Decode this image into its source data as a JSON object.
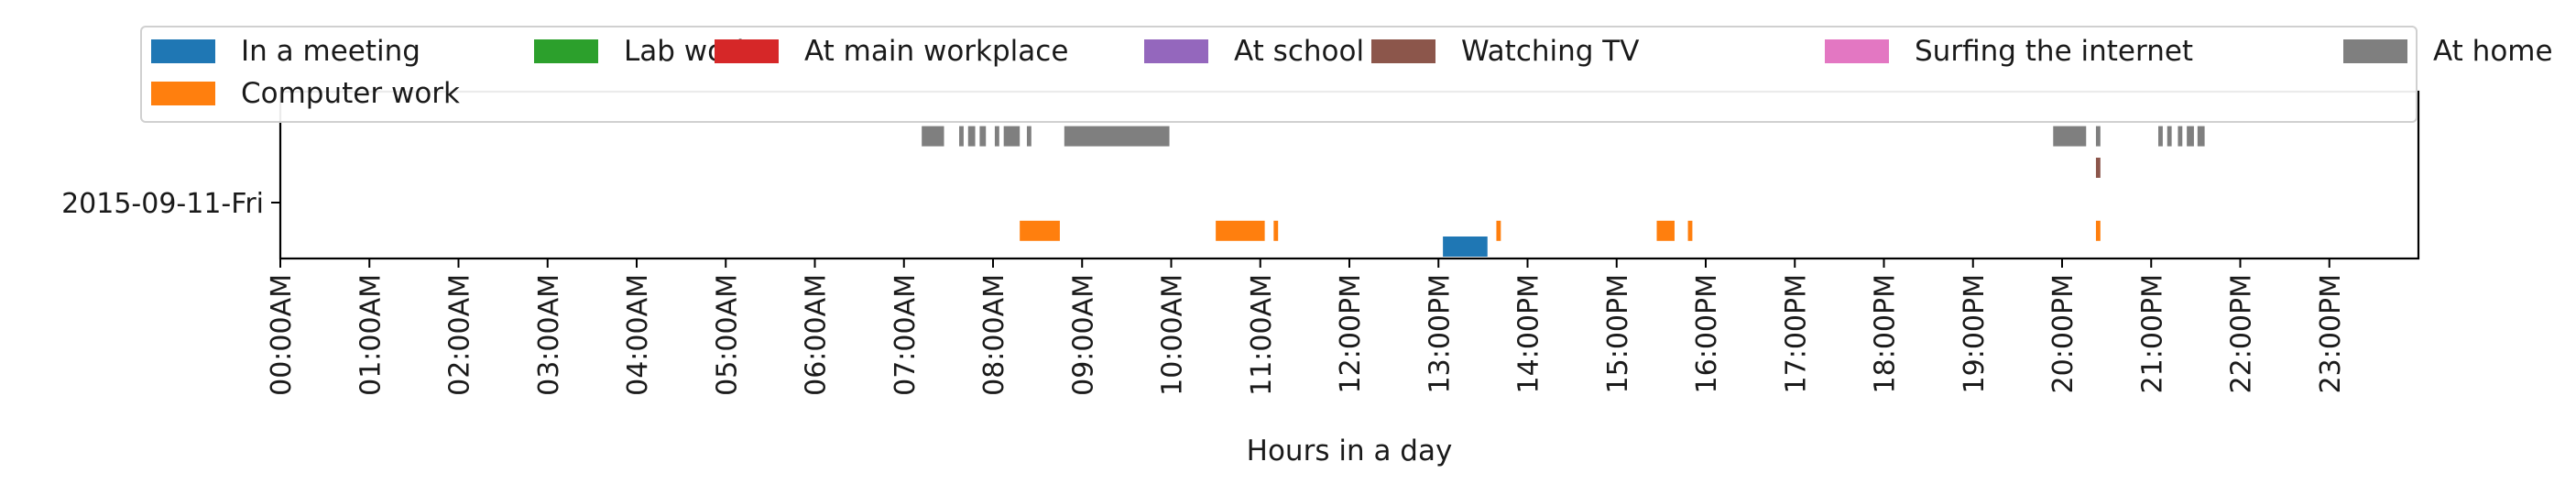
{
  "chart_data": {
    "type": "bar",
    "x": {
      "label": "Hours in a day",
      "ticks": [
        "00:00AM",
        "01:00AM",
        "02:00AM",
        "03:00AM",
        "04:00AM",
        "05:00AM",
        "06:00AM",
        "07:00AM",
        "08:00AM",
        "09:00AM",
        "10:00AM",
        "11:00AM",
        "12:00PM",
        "13:00PM",
        "14:00PM",
        "15:00PM",
        "16:00PM",
        "17:00PM",
        "18:00PM",
        "19:00PM",
        "20:00PM",
        "21:00PM",
        "22:00PM",
        "23:00PM"
      ],
      "range": [
        0,
        24
      ]
    },
    "y": {
      "categories": [
        "2015-09-11-Fri"
      ]
    },
    "legend": {
      "placement": "top"
    },
    "series": [
      {
        "name": "In a meeting",
        "color": "#1f77b4",
        "lane": 0,
        "intervals": [
          [
            13.05,
            13.55
          ]
        ]
      },
      {
        "name": "Computer work",
        "color": "#ff7f0e",
        "lane": 1,
        "intervals": [
          [
            8.3,
            8.75
          ],
          [
            10.5,
            11.05
          ],
          [
            11.15,
            11.2
          ],
          [
            13.65,
            13.7
          ],
          [
            15.45,
            15.65
          ],
          [
            15.8,
            15.85
          ],
          [
            20.38,
            20.43
          ]
        ]
      },
      {
        "name": "Lab work",
        "color": "#2ca02c",
        "lane": 2,
        "intervals": []
      },
      {
        "name": "At main workplace",
        "color": "#d62728",
        "lane": 3,
        "intervals": []
      },
      {
        "name": "At school",
        "color": "#9467bd",
        "lane": 4,
        "intervals": []
      },
      {
        "name": "Watching TV",
        "color": "#8c564b",
        "lane": 5,
        "intervals": [
          [
            20.38,
            20.43
          ]
        ]
      },
      {
        "name": "Surfing the internet",
        "color": "#e377c2",
        "lane": 6,
        "intervals": []
      },
      {
        "name": "At home",
        "color": "#7f7f7f",
        "lane": 7,
        "intervals": [
          [
            7.2,
            7.45
          ],
          [
            7.62,
            7.67
          ],
          [
            7.72,
            7.8
          ],
          [
            7.85,
            7.92
          ],
          [
            8.02,
            8.07
          ],
          [
            8.12,
            8.3
          ],
          [
            8.38,
            8.43
          ],
          [
            8.8,
            9.98
          ],
          [
            19.9,
            20.27
          ],
          [
            20.38,
            20.43
          ],
          [
            21.08,
            21.13
          ],
          [
            21.18,
            21.23
          ],
          [
            21.3,
            21.35
          ],
          [
            21.4,
            21.48
          ],
          [
            21.52,
            21.6
          ]
        ]
      }
    ]
  }
}
